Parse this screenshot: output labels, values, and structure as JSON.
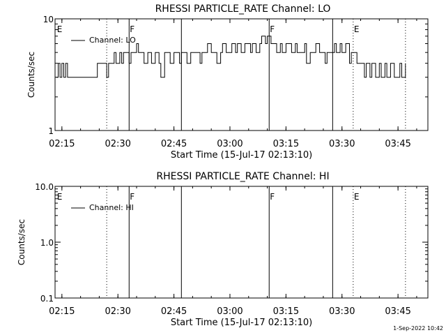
{
  "chart_data": [
    {
      "type": "line",
      "title": "RHESSI PARTICLE_RATE Channel: LO",
      "xlabel": "Start Time (15-Jul-17 02:13:10)",
      "ylabel": "Counts/sec",
      "yscale": "log",
      "xlim": [
        "02:13:10",
        "03:53:00"
      ],
      "ylim": [
        1,
        10
      ],
      "x_ticks": [
        "02:15",
        "02:30",
        "02:45",
        "03:00",
        "03:15",
        "03:30",
        "03:45"
      ],
      "y_ticks": [
        "1",
        "10"
      ],
      "legend": {
        "placement": "top-left",
        "entries": [
          "Channel: LO"
        ]
      },
      "markers": [
        {
          "time": "02:13:30",
          "label": "E",
          "style": "none"
        },
        {
          "time": "02:27:00",
          "label": "",
          "style": "dotted"
        },
        {
          "time": "02:33:00",
          "label": "F",
          "style": "solid"
        },
        {
          "time": "02:47:00",
          "label": "",
          "style": "solid"
        },
        {
          "time": "03:10:30",
          "label": "F",
          "style": "solid"
        },
        {
          "time": "03:27:30",
          "label": "",
          "style": "solid"
        },
        {
          "time": "03:33:00",
          "label": "E",
          "style": "dotted"
        },
        {
          "time": "03:47:00",
          "label": "",
          "style": "dotted"
        }
      ],
      "series": [
        {
          "name": "Channel: LO",
          "x": [
            "02:13:30",
            "02:14:00",
            "02:14:30",
            "02:15:00",
            "02:15:30",
            "02:16:00",
            "02:16:30",
            "02:17:00",
            "02:18:00",
            "02:20:00",
            "02:22:00",
            "02:24:00",
            "02:24:30",
            "02:25:30",
            "02:26:30",
            "02:27:00",
            "02:27:30",
            "02:28:30",
            "02:29:00",
            "02:29:30",
            "02:30:30",
            "02:31:00",
            "02:31:30",
            "02:32:30",
            "02:33:00",
            "02:33:30",
            "02:34:30",
            "02:35:00",
            "02:35:30",
            "02:36:30",
            "02:37:00",
            "02:38:00",
            "02:38:30",
            "02:39:00",
            "02:40:00",
            "02:41:00",
            "02:41:30",
            "02:42:30",
            "02:43:00",
            "02:44:00",
            "02:45:00",
            "02:45:30",
            "02:46:30",
            "02:47:00",
            "02:48:00",
            "02:48:30",
            "02:49:30",
            "02:50:00",
            "02:51:00",
            "02:52:00",
            "02:52:30",
            "02:53:30",
            "02:54:00",
            "02:55:00",
            "02:56:00",
            "02:56:30",
            "02:57:30",
            "02:58:00",
            "02:59:00",
            "03:00:00",
            "03:00:30",
            "03:01:30",
            "03:02:00",
            "03:03:00",
            "03:04:00",
            "03:04:30",
            "03:05:30",
            "03:06:00",
            "03:07:00",
            "03:08:00",
            "03:08:30",
            "03:09:30",
            "03:10:00",
            "03:11:00",
            "03:12:00",
            "03:12:30",
            "03:13:30",
            "03:14:00",
            "03:15:00",
            "03:16:00",
            "03:16:30",
            "03:17:30",
            "03:18:00",
            "03:19:00",
            "03:20:00",
            "03:20:30",
            "03:21:30",
            "03:22:00",
            "03:23:00",
            "03:24:00",
            "03:24:30",
            "03:25:30",
            "03:26:00",
            "03:27:00",
            "03:28:00",
            "03:28:30",
            "03:29:30",
            "03:30:00",
            "03:31:00",
            "03:32:00",
            "03:32:30",
            "03:33:30",
            "03:34:00",
            "03:35:00",
            "03:36:00",
            "03:36:30",
            "03:37:30",
            "03:38:00",
            "03:39:00",
            "03:40:00",
            "03:40:30",
            "03:41:30",
            "03:42:00",
            "03:43:00",
            "03:44:00",
            "03:44:30",
            "03:45:30",
            "03:46:00",
            "03:47:00"
          ],
          "y": [
            3,
            4,
            3,
            4,
            3,
            4,
            3,
            3,
            3,
            3,
            3,
            3,
            4,
            4,
            4,
            3,
            4,
            4,
            5,
            4,
            5,
            4,
            5,
            5,
            4,
            5,
            5,
            6,
            5,
            5,
            4,
            5,
            5,
            4,
            5,
            4,
            3,
            5,
            5,
            4,
            5,
            5,
            4,
            5,
            5,
            4,
            5,
            5,
            5,
            4,
            5,
            5,
            6,
            5,
            5,
            4,
            5,
            6,
            5,
            5,
            6,
            5,
            6,
            5,
            6,
            6,
            5,
            6,
            5,
            6,
            7,
            6,
            7,
            6,
            6,
            5,
            6,
            5,
            6,
            6,
            5,
            6,
            5,
            5,
            6,
            4,
            5,
            5,
            6,
            5,
            5,
            4,
            5,
            5,
            6,
            5,
            6,
            5,
            6,
            4,
            5,
            5,
            4,
            4,
            3,
            4,
            3,
            4,
            3,
            4,
            3,
            4,
            3,
            4,
            3,
            3,
            4,
            3,
            4
          ],
          "color": "#000000"
        }
      ]
    },
    {
      "type": "line",
      "title": "RHESSI PARTICLE_RATE Channel: HI",
      "xlabel": "Start Time (15-Jul-17 02:13:10)",
      "ylabel": "Counts/sec",
      "yscale": "log",
      "xlim": [
        "02:13:10",
        "03:53:00"
      ],
      "ylim": [
        0.1,
        10
      ],
      "x_ticks": [
        "02:15",
        "02:30",
        "02:45",
        "03:00",
        "03:15",
        "03:30",
        "03:45"
      ],
      "y_ticks": [
        "0.1",
        "1.0",
        "10.0"
      ],
      "legend": {
        "placement": "top-left",
        "entries": [
          "Channel: HI"
        ]
      },
      "markers": [
        {
          "time": "02:13:30",
          "label": "E",
          "style": "none"
        },
        {
          "time": "02:27:00",
          "label": "",
          "style": "dotted"
        },
        {
          "time": "02:33:00",
          "label": "F",
          "style": "solid"
        },
        {
          "time": "02:47:00",
          "label": "",
          "style": "solid"
        },
        {
          "time": "03:10:30",
          "label": "F",
          "style": "solid"
        },
        {
          "time": "03:27:30",
          "label": "",
          "style": "solid"
        },
        {
          "time": "03:33:00",
          "label": "E",
          "style": "dotted"
        },
        {
          "time": "03:47:00",
          "label": "",
          "style": "dotted"
        }
      ],
      "series": [
        {
          "name": "Channel: HI",
          "x": [],
          "y": [],
          "color": "#000000"
        }
      ]
    }
  ],
  "footer": {
    "timestamp": "1-Sep-2022 10:42"
  }
}
